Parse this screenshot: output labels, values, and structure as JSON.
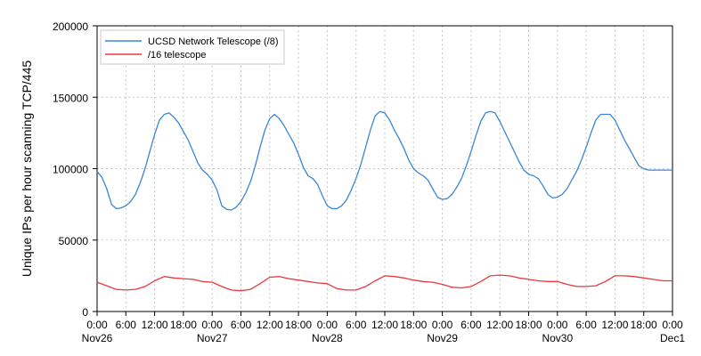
{
  "chart_data": {
    "type": "line",
    "title": "",
    "xlabel": "",
    "ylabel": "Unique IPs per hour scanning TCP/445",
    "ylim": [
      0,
      200000
    ],
    "yticks": [
      0,
      50000,
      100000,
      150000,
      200000
    ],
    "ytick_labels": [
      "0",
      "50000",
      "100000",
      "150000",
      "200000"
    ],
    "xlim": [
      0,
      120
    ],
    "xticks": [
      0,
      6,
      12,
      18,
      24,
      30,
      36,
      42,
      48,
      54,
      60,
      66,
      72,
      78,
      84,
      90,
      96,
      102,
      108,
      114,
      120
    ],
    "xtick_labels": [
      "0:00",
      "6:00",
      "12:00",
      "18:00",
      "0:00",
      "6:00",
      "12:00",
      "18:00",
      "0:00",
      "6:00",
      "12:00",
      "18:00",
      "0:00",
      "6:00",
      "12:00",
      "18:00",
      "0:00",
      "6:00",
      "12:00",
      "18:00",
      "0:00"
    ],
    "date_ticks": [
      0,
      24,
      48,
      72,
      96,
      120
    ],
    "date_labels": [
      "Nov26",
      "Nov27",
      "Nov28",
      "Nov29",
      "Nov30",
      "Dec1"
    ],
    "grid": true,
    "legend_position": "top-left",
    "series": [
      {
        "name": "UCSD Network Telescope (/8)",
        "color": "#3a86d4",
        "x": [
          0,
          1,
          2,
          3,
          4,
          5,
          6,
          7,
          8,
          9,
          10,
          11,
          12,
          13,
          14,
          15,
          16,
          17,
          18,
          19,
          20,
          21,
          22,
          23,
          24,
          25,
          26,
          27,
          28,
          29,
          30,
          31,
          32,
          33,
          34,
          35,
          36,
          37,
          38,
          39,
          40,
          41,
          42,
          43,
          44,
          45,
          46,
          47,
          48,
          49,
          50,
          51,
          52,
          53,
          54,
          55,
          56,
          57,
          58,
          59,
          60,
          61,
          62,
          63,
          64,
          65,
          66,
          67,
          68,
          69,
          70,
          71,
          72,
          73,
          74,
          75,
          76,
          77,
          78,
          79,
          80,
          81,
          82,
          83,
          84,
          85,
          86,
          87,
          88,
          89,
          90,
          91,
          92,
          93,
          94,
          95,
          96,
          97,
          98,
          99,
          100,
          101,
          102,
          103,
          104,
          105,
          106,
          107,
          108,
          109,
          110,
          111,
          112,
          113,
          114,
          115,
          116,
          117,
          118,
          119,
          120
        ],
        "values": [
          98000,
          94000,
          86000,
          75000,
          72000,
          72500,
          74000,
          77000,
          82000,
          90000,
          100000,
          112000,
          124000,
          134000,
          138000,
          139000,
          136000,
          132000,
          126000,
          120000,
          112000,
          104000,
          99000,
          96000,
          92000,
          85000,
          74000,
          71500,
          71000,
          73000,
          77000,
          83000,
          91000,
          102000,
          115000,
          127000,
          135000,
          138000,
          135000,
          130000,
          124000,
          118000,
          110000,
          101000,
          95000,
          93000,
          89000,
          81000,
          74000,
          72000,
          72000,
          74000,
          78000,
          85000,
          93000,
          103000,
          115000,
          127000,
          137000,
          140000,
          139000,
          134000,
          127000,
          121000,
          114000,
          106000,
          100000,
          97000,
          95000,
          92000,
          86000,
          80000,
          78500,
          79000,
          82000,
          87000,
          93000,
          102000,
          112000,
          123000,
          133000,
          139000,
          140000,
          139000,
          133000,
          126000,
          119000,
          112000,
          105000,
          99000,
          96000,
          95000,
          93000,
          88000,
          82000,
          79500,
          80000,
          82000,
          86000,
          92000,
          98000,
          106000,
          115000,
          125000,
          134000,
          138000,
          138000,
          138000,
          134000,
          127000,
          120000,
          114000,
          108000,
          102000,
          100000,
          99000,
          99000,
          99000,
          99000,
          99000,
          99000
        ]
      },
      {
        "name": "/16 telescope",
        "color": "#e8383d",
        "x": [
          0,
          2,
          4,
          6,
          8,
          10,
          12,
          14,
          16,
          18,
          20,
          22,
          24,
          26,
          28,
          30,
          32,
          34,
          36,
          38,
          40,
          42,
          44,
          46,
          48,
          50,
          52,
          54,
          56,
          58,
          60,
          62,
          64,
          66,
          68,
          70,
          72,
          74,
          76,
          78,
          80,
          82,
          84,
          86,
          88,
          90,
          92,
          94,
          96,
          98,
          100,
          102,
          104,
          106,
          108,
          110,
          112,
          114,
          116,
          118,
          120
        ],
        "values": [
          20500,
          18000,
          15500,
          15000,
          15500,
          17500,
          21500,
          24500,
          23500,
          23000,
          22500,
          21000,
          20500,
          17500,
          15000,
          14500,
          15500,
          19500,
          24000,
          24500,
          23000,
          22000,
          21000,
          20000,
          19500,
          16000,
          15000,
          15000,
          17500,
          21500,
          25000,
          24500,
          23500,
          22000,
          21000,
          20500,
          19000,
          17000,
          16500,
          17500,
          21000,
          25000,
          25500,
          25000,
          23500,
          22500,
          21500,
          21000,
          21000,
          19000,
          17500,
          17500,
          18000,
          21000,
          25000,
          25000,
          24500,
          23500,
          22500,
          21500,
          21500
        ]
      }
    ]
  }
}
